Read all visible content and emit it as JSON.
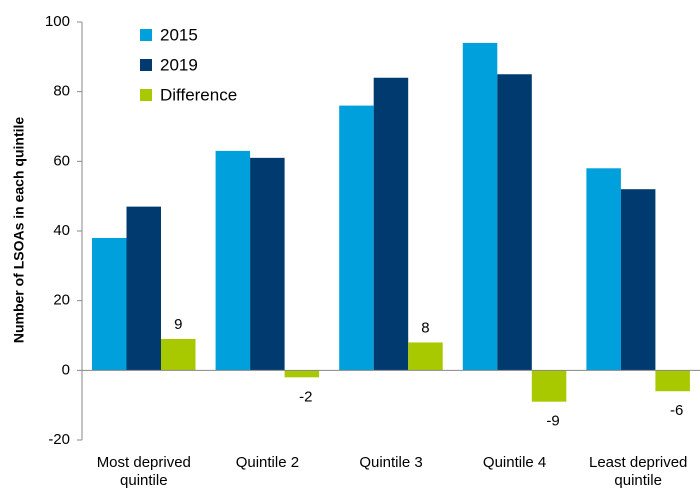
{
  "chart_data": {
    "type": "bar",
    "y_label": "Number of LSOAs in each quintile",
    "categories": [
      "Most deprived quintile",
      "Quintile 2",
      "Quintile 3",
      "Quintile 4",
      "Least deprived quintile"
    ],
    "series": [
      {
        "name": "2015",
        "color": "#00a0dc",
        "values": [
          38,
          63,
          76,
          94,
          58
        ]
      },
      {
        "name": "2019",
        "color": "#003a6e",
        "values": [
          47,
          61,
          84,
          85,
          52
        ]
      },
      {
        "name": "Difference",
        "color": "#a8c800",
        "values": [
          9,
          -2,
          8,
          -9,
          -6
        ],
        "labeled": true
      }
    ],
    "ylim": [
      -20,
      100
    ],
    "yticks": [
      -20,
      0,
      20,
      40,
      60,
      80,
      100
    ],
    "legend": "upper left"
  }
}
